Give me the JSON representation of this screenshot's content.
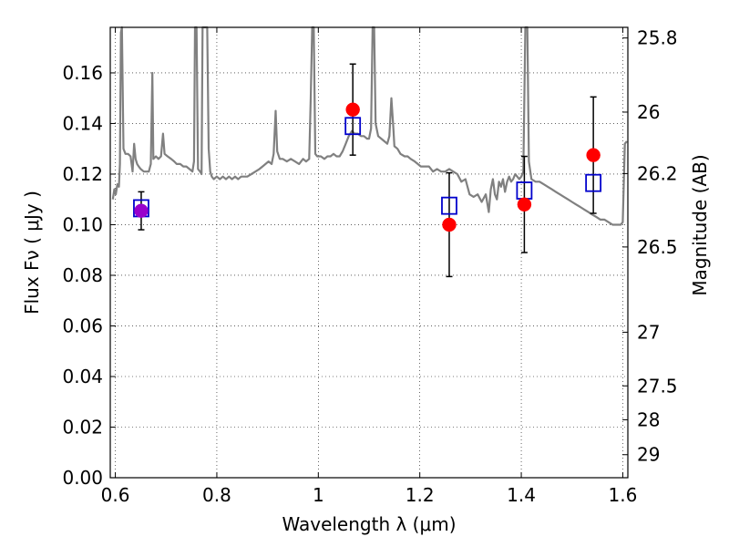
{
  "chart_data": {
    "type": "scatter",
    "title": "",
    "xlabel": "Wavelength  λ (μm)",
    "ylabel": "Flux  Fν  ( μJy )",
    "y2label": "Magnitude (AB)",
    "xlim": [
      0.59,
      1.61
    ],
    "ylim": [
      0.0,
      0.178
    ],
    "grid": true,
    "x_ticks": [
      {
        "value": 0.6,
        "label": "0.6"
      },
      {
        "value": 0.8,
        "label": "0.8"
      },
      {
        "value": 1.0,
        "label": "1"
      },
      {
        "value": 1.2,
        "label": "1.2"
      },
      {
        "value": 1.4,
        "label": "1.4"
      },
      {
        "value": 1.6,
        "label": "1.6"
      }
    ],
    "y_ticks": [
      {
        "value": 0.0,
        "label": "0.00"
      },
      {
        "value": 0.02,
        "label": "0.02"
      },
      {
        "value": 0.04,
        "label": "0.04"
      },
      {
        "value": 0.06,
        "label": "0.06"
      },
      {
        "value": 0.08,
        "label": "0.08"
      },
      {
        "value": 0.1,
        "label": "0.10"
      },
      {
        "value": 0.12,
        "label": "0.12"
      },
      {
        "value": 0.14,
        "label": "0.14"
      },
      {
        "value": 0.16,
        "label": "0.16"
      }
    ],
    "y2_ticks": [
      {
        "flux": 0.1738,
        "label": "25.8"
      },
      {
        "flux": 0.1445,
        "label": "26"
      },
      {
        "flux": 0.1202,
        "label": "26.2"
      },
      {
        "flux": 0.0912,
        "label": "26.5"
      },
      {
        "flux": 0.0575,
        "label": "27"
      },
      {
        "flux": 0.0363,
        "label": "27.5"
      },
      {
        "flux": 0.0229,
        "label": "28"
      },
      {
        "flux": 0.0091,
        "label": "29"
      }
    ],
    "series": [
      {
        "kind": "model-spectrum",
        "color": "#808080",
        "points": [
          [
            0.595,
            0.11
          ],
          [
            0.598,
            0.114
          ],
          [
            0.601,
            0.112
          ],
          [
            0.604,
            0.116
          ],
          [
            0.607,
            0.115
          ],
          [
            0.609,
            0.124
          ],
          [
            0.611,
            0.176
          ],
          [
            0.613,
            0.178
          ],
          [
            0.616,
            0.13
          ],
          [
            0.62,
            0.128
          ],
          [
            0.625,
            0.128
          ],
          [
            0.63,
            0.127
          ],
          [
            0.634,
            0.121
          ],
          [
            0.637,
            0.132
          ],
          [
            0.64,
            0.126
          ],
          [
            0.643,
            0.124
          ],
          [
            0.646,
            0.123
          ],
          [
            0.65,
            0.122
          ],
          [
            0.656,
            0.121
          ],
          [
            0.66,
            0.121
          ],
          [
            0.666,
            0.121
          ],
          [
            0.67,
            0.124
          ],
          [
            0.673,
            0.16
          ],
          [
            0.675,
            0.126
          ],
          [
            0.68,
            0.127
          ],
          [
            0.685,
            0.126
          ],
          [
            0.69,
            0.127
          ],
          [
            0.694,
            0.136
          ],
          [
            0.697,
            0.128
          ],
          [
            0.703,
            0.127
          ],
          [
            0.71,
            0.126
          ],
          [
            0.716,
            0.125
          ],
          [
            0.721,
            0.124
          ],
          [
            0.728,
            0.124
          ],
          [
            0.734,
            0.123
          ],
          [
            0.74,
            0.123
          ],
          [
            0.746,
            0.122
          ],
          [
            0.752,
            0.121
          ],
          [
            0.755,
            0.125
          ],
          [
            0.757,
            0.178
          ],
          [
            0.76,
            0.178
          ],
          [
            0.763,
            0.122
          ],
          [
            0.767,
            0.121
          ],
          [
            0.77,
            0.12
          ],
          [
            0.772,
            0.178
          ],
          [
            0.775,
            0.178
          ],
          [
            0.778,
            0.178
          ],
          [
            0.781,
            0.178
          ],
          [
            0.784,
            0.13
          ],
          [
            0.787,
            0.121
          ],
          [
            0.79,
            0.119
          ],
          [
            0.794,
            0.118
          ],
          [
            0.8,
            0.119
          ],
          [
            0.806,
            0.118
          ],
          [
            0.812,
            0.119
          ],
          [
            0.818,
            0.118
          ],
          [
            0.824,
            0.119
          ],
          [
            0.83,
            0.118
          ],
          [
            0.836,
            0.119
          ],
          [
            0.842,
            0.118
          ],
          [
            0.848,
            0.119
          ],
          [
            0.854,
            0.119
          ],
          [
            0.86,
            0.119
          ],
          [
            0.868,
            0.12
          ],
          [
            0.876,
            0.121
          ],
          [
            0.884,
            0.122
          ],
          [
            0.89,
            0.123
          ],
          [
            0.896,
            0.124
          ],
          [
            0.902,
            0.125
          ],
          [
            0.908,
            0.124
          ],
          [
            0.912,
            0.128
          ],
          [
            0.916,
            0.145
          ],
          [
            0.919,
            0.129
          ],
          [
            0.924,
            0.126
          ],
          [
            0.93,
            0.126
          ],
          [
            0.938,
            0.125
          ],
          [
            0.946,
            0.126
          ],
          [
            0.954,
            0.125
          ],
          [
            0.962,
            0.124
          ],
          [
            0.97,
            0.126
          ],
          [
            0.976,
            0.125
          ],
          [
            0.982,
            0.126
          ],
          [
            0.985,
            0.15
          ],
          [
            0.988,
            0.178
          ],
          [
            0.991,
            0.178
          ],
          [
            0.994,
            0.128
          ],
          [
            0.998,
            0.127
          ],
          [
            1.005,
            0.127
          ],
          [
            1.012,
            0.126
          ],
          [
            1.018,
            0.127
          ],
          [
            1.024,
            0.127
          ],
          [
            1.03,
            0.128
          ],
          [
            1.036,
            0.127
          ],
          [
            1.042,
            0.127
          ],
          [
            1.048,
            0.129
          ],
          [
            1.054,
            0.132
          ],
          [
            1.06,
            0.135
          ],
          [
            1.066,
            0.137
          ],
          [
            1.072,
            0.136
          ],
          [
            1.078,
            0.136
          ],
          [
            1.084,
            0.135
          ],
          [
            1.09,
            0.135
          ],
          [
            1.096,
            0.134
          ],
          [
            1.1,
            0.134
          ],
          [
            1.104,
            0.138
          ],
          [
            1.107,
            0.178
          ],
          [
            1.11,
            0.178
          ],
          [
            1.113,
            0.14
          ],
          [
            1.118,
            0.135
          ],
          [
            1.124,
            0.134
          ],
          [
            1.13,
            0.133
          ],
          [
            1.136,
            0.132
          ],
          [
            1.14,
            0.135
          ],
          [
            1.144,
            0.15
          ],
          [
            1.148,
            0.138
          ],
          [
            1.15,
            0.131
          ],
          [
            1.156,
            0.13
          ],
          [
            1.162,
            0.128
          ],
          [
            1.17,
            0.127
          ],
          [
            1.176,
            0.127
          ],
          [
            1.182,
            0.126
          ],
          [
            1.19,
            0.125
          ],
          [
            1.196,
            0.124
          ],
          [
            1.202,
            0.123
          ],
          [
            1.21,
            0.123
          ],
          [
            1.218,
            0.123
          ],
          [
            1.226,
            0.121
          ],
          [
            1.234,
            0.122
          ],
          [
            1.242,
            0.121
          ],
          [
            1.25,
            0.121
          ],
          [
            1.258,
            0.122
          ],
          [
            1.266,
            0.121
          ],
          [
            1.274,
            0.12
          ],
          [
            1.282,
            0.117
          ],
          [
            1.29,
            0.118
          ],
          [
            1.298,
            0.112
          ],
          [
            1.306,
            0.111
          ],
          [
            1.314,
            0.112
          ],
          [
            1.322,
            0.109
          ],
          [
            1.33,
            0.112
          ],
          [
            1.336,
            0.105
          ],
          [
            1.34,
            0.114
          ],
          [
            1.344,
            0.118
          ],
          [
            1.348,
            0.112
          ],
          [
            1.352,
            0.11
          ],
          [
            1.356,
            0.117
          ],
          [
            1.36,
            0.115
          ],
          [
            1.364,
            0.118
          ],
          [
            1.368,
            0.113
          ],
          [
            1.372,
            0.117
          ],
          [
            1.376,
            0.119
          ],
          [
            1.38,
            0.117
          ],
          [
            1.384,
            0.118
          ],
          [
            1.388,
            0.12
          ],
          [
            1.392,
            0.119
          ],
          [
            1.396,
            0.118
          ],
          [
            1.4,
            0.119
          ],
          [
            1.404,
            0.121
          ],
          [
            1.408,
            0.178
          ],
          [
            1.412,
            0.178
          ],
          [
            1.415,
            0.125
          ],
          [
            1.42,
            0.118
          ],
          [
            1.428,
            0.117
          ],
          [
            1.436,
            0.117
          ],
          [
            1.444,
            0.116
          ],
          [
            1.452,
            0.115
          ],
          [
            1.46,
            0.114
          ],
          [
            1.468,
            0.113
          ],
          [
            1.476,
            0.112
          ],
          [
            1.484,
            0.111
          ],
          [
            1.492,
            0.11
          ],
          [
            1.5,
            0.109
          ],
          [
            1.508,
            0.108
          ],
          [
            1.516,
            0.107
          ],
          [
            1.524,
            0.106
          ],
          [
            1.532,
            0.105
          ],
          [
            1.54,
            0.104
          ],
          [
            1.548,
            0.103
          ],
          [
            1.556,
            0.102
          ],
          [
            1.564,
            0.102
          ],
          [
            1.572,
            0.101
          ],
          [
            1.58,
            0.1
          ],
          [
            1.588,
            0.1
          ],
          [
            1.596,
            0.1
          ],
          [
            1.6,
            0.101
          ],
          [
            1.604,
            0.132
          ],
          [
            1.608,
            0.133
          ]
        ]
      },
      {
        "kind": "observed-flux",
        "marker": "circle",
        "color": "#ff0000",
        "points": [
          {
            "x": 0.651,
            "y": 0.1055,
            "yerr": 0.0075
          },
          {
            "x": 1.068,
            "y": 0.1455,
            "yerr": 0.018
          },
          {
            "x": 1.258,
            "y": 0.1,
            "yerr": 0.0205
          },
          {
            "x": 1.406,
            "y": 0.108,
            "yerr": 0.019
          },
          {
            "x": 1.542,
            "y": 0.1275,
            "yerr": 0.023
          }
        ]
      },
      {
        "kind": "model-flux",
        "marker": "square",
        "color": "#0000cc",
        "points": [
          {
            "x": 0.651,
            "y": 0.1065
          },
          {
            "x": 1.068,
            "y": 0.139
          },
          {
            "x": 1.258,
            "y": 0.1075
          },
          {
            "x": 1.406,
            "y": 0.1135
          },
          {
            "x": 1.542,
            "y": 0.1165
          }
        ]
      }
    ],
    "marker_overlap_color": "#9900cc"
  }
}
